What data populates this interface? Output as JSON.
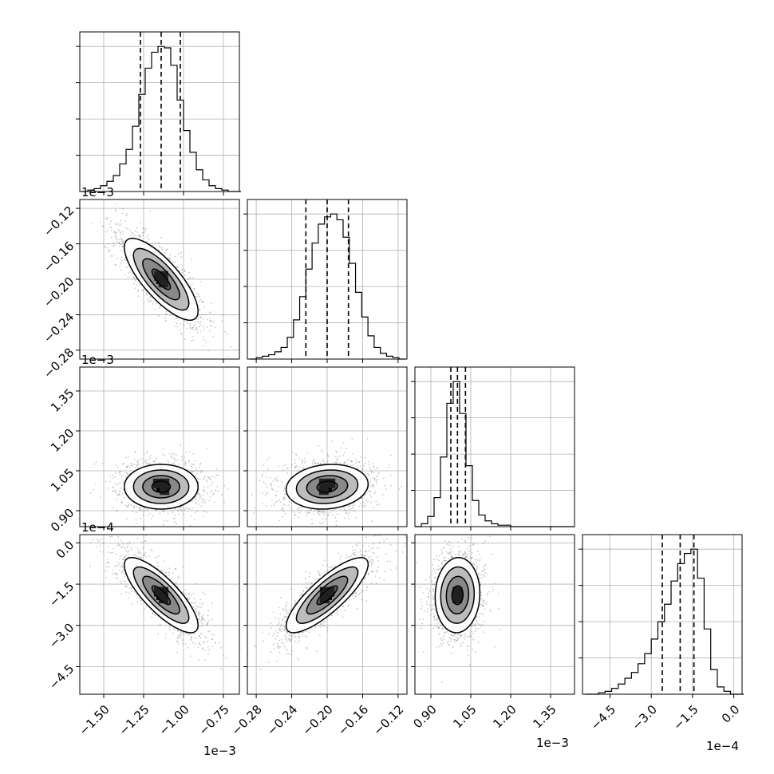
{
  "chart_data": {
    "type": "corner",
    "parameters": [
      {
        "name": "param-0",
        "ticks": [
          -1.5,
          -1.25,
          -1.0,
          -0.75
        ],
        "tick_labels": [
          "−1.50",
          "−1.25",
          "−1.00",
          "−0.75"
        ],
        "range": [
          -1.65,
          -0.65
        ],
        "offset_label": "1e−3",
        "quantiles": [
          -1.27,
          -1.14,
          -1.02
        ],
        "hist_bins": [
          -1.64,
          -1.6,
          -1.56,
          -1.52,
          -1.48,
          -1.44,
          -1.4,
          -1.36,
          -1.32,
          -1.28,
          -1.24,
          -1.2,
          -1.16,
          -1.12,
          -1.08,
          -1.04,
          -1.0,
          -0.96,
          -0.92,
          -0.88,
          -0.84,
          -0.8,
          -0.76,
          -0.72,
          -0.68
        ],
        "hist_values": [
          0,
          0.01,
          0.02,
          0.04,
          0.07,
          0.11,
          0.19,
          0.29,
          0.45,
          0.67,
          0.85,
          0.96,
          1.0,
          0.99,
          0.87,
          0.63,
          0.42,
          0.27,
          0.15,
          0.08,
          0.04,
          0.02,
          0.01,
          0.0,
          0.0
        ]
      },
      {
        "name": "param-1",
        "ticks": [
          -0.28,
          -0.24,
          -0.2,
          -0.16,
          -0.12
        ],
        "tick_labels": [
          "−0.28",
          "−0.24",
          "−0.20",
          "−0.16",
          "−0.12"
        ],
        "range": [
          -0.29,
          -0.11
        ],
        "offset_label": "1e−3",
        "quantiles": [
          -0.224,
          -0.2,
          -0.176
        ],
        "hist_bins": [
          -0.287,
          -0.28,
          -0.273,
          -0.266,
          -0.259,
          -0.252,
          -0.245,
          -0.238,
          -0.231,
          -0.224,
          -0.217,
          -0.21,
          -0.203,
          -0.196,
          -0.189,
          -0.182,
          -0.175,
          -0.168,
          -0.161,
          -0.154,
          -0.147,
          -0.14,
          -0.133,
          -0.126,
          -0.119
        ],
        "hist_values": [
          0.0,
          0.01,
          0.02,
          0.03,
          0.05,
          0.08,
          0.15,
          0.27,
          0.43,
          0.62,
          0.8,
          0.93,
          0.98,
          1.0,
          0.96,
          0.84,
          0.66,
          0.46,
          0.29,
          0.16,
          0.08,
          0.04,
          0.02,
          0.01,
          0.0
        ]
      },
      {
        "name": "param-2",
        "ticks": [
          0.9,
          1.05,
          1.2,
          1.35
        ],
        "tick_labels": [
          "0.90",
          "1.05",
          "1.20",
          "1.35"
        ],
        "range": [
          0.84,
          1.44
        ],
        "offset_label": "1e−3",
        "quantiles": [
          0.975,
          1.0,
          1.03
        ],
        "hist_bins": [
          0.84,
          0.864,
          0.888,
          0.912,
          0.936,
          0.96,
          0.984,
          1.008,
          1.032,
          1.056,
          1.08,
          1.104,
          1.128,
          1.152,
          1.176,
          1.2,
          1.224,
          1.248,
          1.272,
          1.296,
          1.32,
          1.344,
          1.368,
          1.392,
          1.416
        ],
        "hist_values": [
          0.0,
          0.02,
          0.07,
          0.2,
          0.48,
          0.85,
          1.0,
          0.78,
          0.42,
          0.18,
          0.08,
          0.04,
          0.02,
          0.01,
          0.01,
          0.0,
          0.0,
          0.0,
          0.0,
          0.0,
          0.0,
          0.0,
          0.0,
          0.0,
          0.0
        ]
      },
      {
        "name": "param-3",
        "ticks": [
          -4.5,
          -3.0,
          -1.5,
          0.0
        ],
        "tick_labels": [
          "−4.5",
          "−3.0",
          "−1.5",
          "0.0"
        ],
        "range": [
          -5.5,
          0.3
        ],
        "offset_label": "1e−4",
        "quantiles": [
          -2.6,
          -1.95,
          -1.45
        ],
        "hist_bins": [
          -5.4,
          -5.16,
          -4.92,
          -4.68,
          -4.44,
          -4.2,
          -3.96,
          -3.72,
          -3.48,
          -3.24,
          -3.0,
          -2.76,
          -2.52,
          -2.28,
          -2.04,
          -1.8,
          -1.56,
          -1.32,
          -1.08,
          -0.84,
          -0.6,
          -0.36,
          -0.12,
          0.12
        ],
        "hist_values": [
          0.0,
          0.0,
          0.01,
          0.02,
          0.04,
          0.07,
          0.11,
          0.15,
          0.21,
          0.28,
          0.38,
          0.5,
          0.62,
          0.78,
          0.9,
          0.97,
          1.0,
          0.8,
          0.45,
          0.17,
          0.05,
          0.02,
          0.0,
          0.0
        ]
      }
    ],
    "pair_panels": [
      {
        "x": 0,
        "y": 1,
        "center": [
          -1.14,
          -0.2
        ],
        "sigma": [
          0.11,
          0.022
        ],
        "rho": -0.78
      },
      {
        "x": 0,
        "y": 2,
        "center": [
          -1.14,
          0.99
        ],
        "sigma": [
          0.11,
          0.04
        ],
        "rho": 0.0
      },
      {
        "x": 1,
        "y": 2,
        "center": [
          -0.2,
          0.99
        ],
        "sigma": [
          0.022,
          0.04
        ],
        "rho": 0.12
      },
      {
        "x": 0,
        "y": 3,
        "center": [
          -1.14,
          -1.9
        ],
        "sigma": [
          0.11,
          0.65
        ],
        "rho": -0.8
      },
      {
        "x": 1,
        "y": 3,
        "center": [
          -0.2,
          -1.9
        ],
        "sigma": [
          0.022,
          0.65
        ],
        "rho": 0.82
      },
      {
        "x": 2,
        "y": 3,
        "center": [
          1.0,
          -1.9
        ],
        "sigma": [
          0.04,
          0.65
        ],
        "rho": 0.05
      }
    ],
    "contour_levels_sigma": [
      0.5,
      1.0,
      1.5,
      2.0
    ],
    "grid": true
  }
}
